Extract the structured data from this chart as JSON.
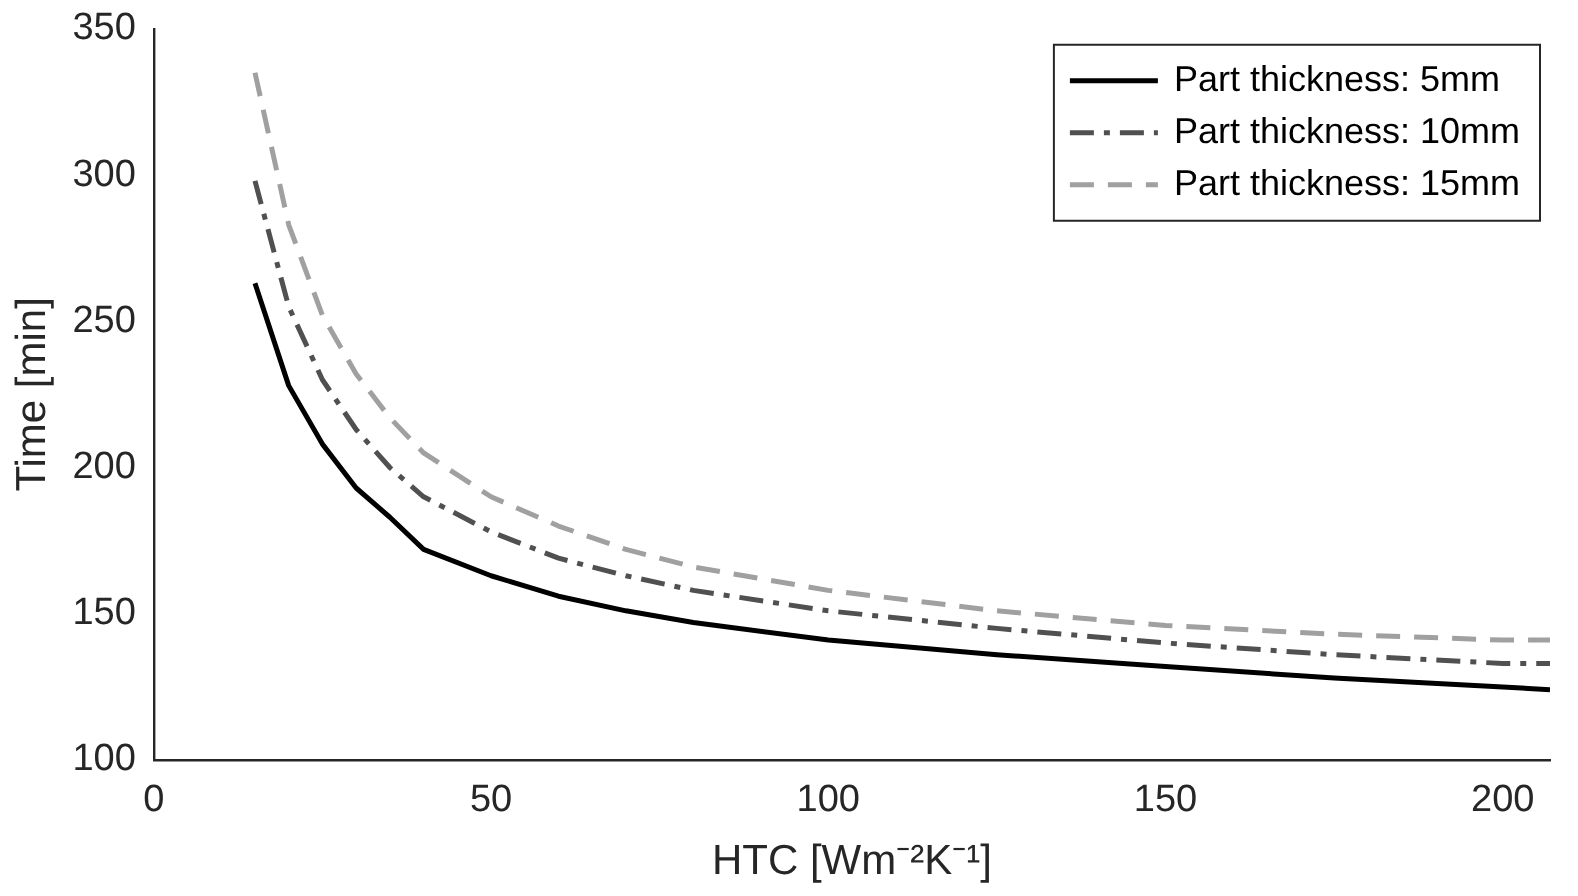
{
  "chart_data": {
    "type": "line",
    "xlabel": "HTC [Wm⁻²K⁻¹]",
    "ylabel": "Time [min]",
    "xlim": [
      0,
      207
    ],
    "xticks": [
      0,
      50,
      100,
      150,
      200
    ],
    "ylim": [
      100,
      350
    ],
    "yticks": [
      100,
      150,
      200,
      250,
      300,
      350
    ],
    "grid": false,
    "legend": "top right",
    "marker": "none",
    "x": [
      15,
      20,
      25,
      30,
      35,
      40,
      50,
      60,
      70,
      80,
      100,
      125,
      150,
      175,
      200,
      207
    ],
    "series": [
      {
        "name": "Part thickness: 5mm",
        "color": "#000000",
        "line_style": "solid",
        "values": [
          263,
          228,
          208,
          193,
          183,
          172,
          163,
          156,
          151,
          147,
          141,
          136,
          132,
          128,
          125,
          124
        ]
      },
      {
        "name": "Part thickness: 10mm",
        "color": "#505050",
        "line_style": "dashdot",
        "values": [
          298,
          255,
          230,
          213,
          200,
          190,
          178,
          169,
          163,
          158,
          151,
          145,
          140,
          136,
          133,
          133
        ]
      },
      {
        "name": "Part thickness: 15mm",
        "color": "#a0a0a0",
        "line_style": "dashed",
        "values": [
          335,
          283,
          252,
          232,
          217,
          205,
          190,
          180,
          172,
          166,
          158,
          151,
          146,
          143,
          141,
          141
        ]
      }
    ]
  }
}
